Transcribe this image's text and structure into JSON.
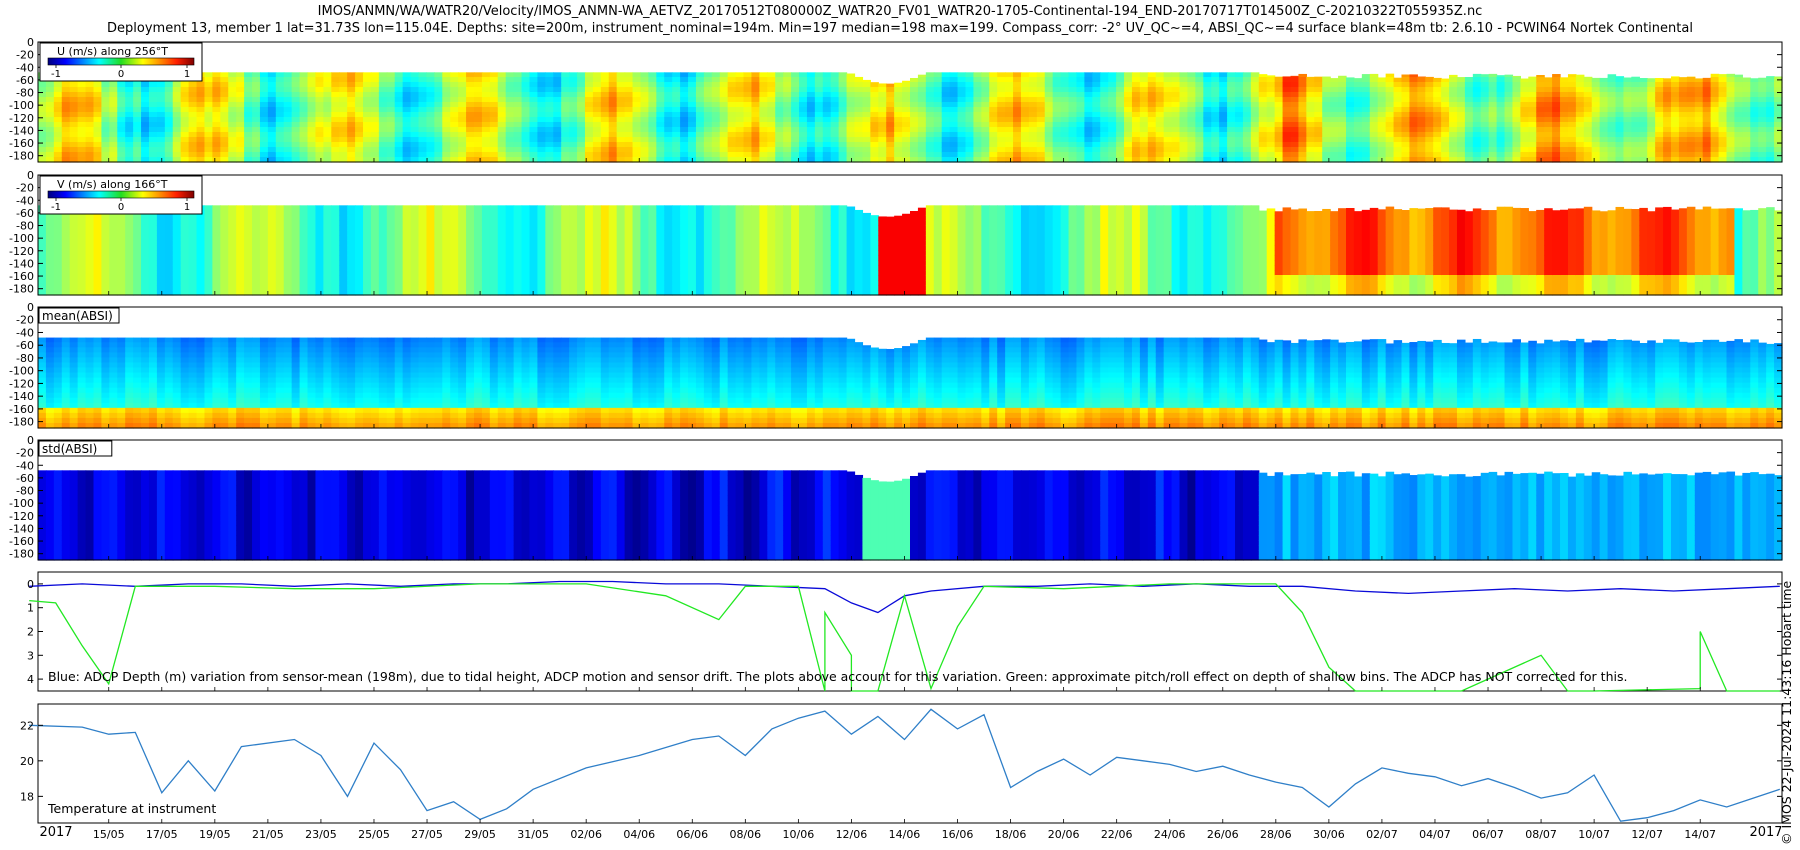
{
  "header": {
    "title_line1": "IMOS/ANMN/WA/WATR20/Velocity/IMOS_ANMN-WA_AETVZ_20170512T080000Z_WATR20_FV01_WATR20-1705-Continental-194_END-20170717T014500Z_C-20210322T055935Z.nc",
    "title_line2": "Deployment 13, member 1 lat=31.73S lon=115.04E. Depths: site=200m, instrument_nominal=194m. Min=197 median=198 max=199. Compass_corr: -2° UV_QC~=4, ABSI_QC~=4 surface blank=48m tb: 2.6.10 - PCWIN64 Nortek Continental"
  },
  "stamp": "© IMOS 22-Jul-2024 11:43:16 Hobart time",
  "colors": {
    "u_series": "#0a0ad8",
    "pitch_roll": "#22e822",
    "temperature": "#2f7fc8",
    "axis": "#000000"
  },
  "chart_data": [
    {
      "type": "heatmap",
      "title": "U (m/s) along 256°T",
      "colormap": "jet",
      "colorbar_ticks": [
        "-1",
        "0",
        "1"
      ],
      "clim": [
        -1.2,
        1.2
      ],
      "ylim": [
        190,
        0
      ],
      "yticks": [
        "0",
        "20",
        "40",
        "60",
        "80",
        "100",
        "120",
        "140",
        "160",
        "180"
      ],
      "surface_blank_depth_m": 48
    },
    {
      "type": "heatmap",
      "title": "V (m/s) along 166°T",
      "colormap": "jet",
      "colorbar_ticks": [
        "-1",
        "0",
        "1"
      ],
      "clim": [
        -1.2,
        1.2
      ],
      "ylim": [
        190,
        0
      ],
      "yticks": [
        "0",
        "20",
        "40",
        "60",
        "80",
        "100",
        "120",
        "140",
        "160",
        "180"
      ],
      "surface_blank_depth_m": 48
    },
    {
      "type": "heatmap",
      "title": "mean(ABSI)",
      "colormap": "jet",
      "ylim": [
        190,
        0
      ],
      "yticks": [
        "0",
        "20",
        "40",
        "60",
        "80",
        "100",
        "120",
        "140",
        "160",
        "180"
      ]
    },
    {
      "type": "heatmap",
      "title": "std(ABSI)",
      "colormap": "jet",
      "ylim": [
        190,
        0
      ],
      "yticks": [
        "0",
        "20",
        "40",
        "60",
        "80",
        "100",
        "120",
        "140",
        "160",
        "180"
      ]
    },
    {
      "type": "line",
      "annotation": "Blue: ADCP Depth (m) variation from sensor-mean (198m), due to tidal height, ADCP motion and sensor drift. The plots above account for this variation. Green: approximate pitch/roll effect on depth of shallow bins. The ADCP has NOT corrected for this.",
      "ylim": [
        4.5,
        -0.5
      ],
      "yticks": [
        "0",
        "1",
        "2",
        "3",
        "4"
      ],
      "series": [
        {
          "x": [
            "12/05",
            "14/05",
            "16/05",
            "18/05",
            "20/05",
            "22/05",
            "24/05",
            "26/05",
            "28/05",
            "30/05",
            "01/06",
            "03/06",
            "05/06",
            "07/06",
            "09/06",
            "11/06",
            "12/06",
            "13/06",
            "14/06",
            "15/06",
            "17/06",
            "19/06",
            "21/06",
            "23/06",
            "25/06",
            "27/06",
            "29/06",
            "01/07",
            "03/07",
            "05/07",
            "07/07",
            "09/07",
            "11/07",
            "13/07",
            "15/07",
            "17/07"
          ],
          "values": [
            0.1,
            0,
            0.1,
            0,
            0,
            0.1,
            0,
            0.1,
            0,
            0,
            -0.1,
            -0.1,
            0,
            0,
            0.1,
            0.2,
            0.8,
            1.2,
            0.5,
            0.3,
            0.1,
            0.1,
            0,
            0.1,
            0,
            0.1,
            0.1,
            0.3,
            0.4,
            0.3,
            0.2,
            0.3,
            0.2,
            0.3,
            0.2,
            0.1
          ]
        },
        {
          "x": [
            "12/05",
            "13/05",
            "14/05",
            "15/05",
            "16/05",
            "19/05",
            "22/05",
            "25/05",
            "29/05",
            "02/06",
            "05/06",
            "07/06",
            "08/06",
            "10/06",
            "11/06",
            "11/06",
            "12/06",
            "12/06",
            "13/06",
            "14/06",
            "15/06",
            "16/06",
            "17/06",
            "20/06",
            "24/06",
            "28/06",
            "29/06",
            "30/06",
            "01/07",
            "05/07",
            "08/07",
            "09/07",
            "10/07",
            "14/07",
            "14/07",
            "15/07",
            "17/07"
          ],
          "values": [
            0.7,
            0.8,
            2.6,
            4.2,
            0.1,
            0.1,
            0.2,
            0.2,
            0,
            0,
            0.5,
            1.5,
            0.1,
            0.1,
            4.5,
            1.2,
            3.0,
            4.5,
            4.5,
            0.5,
            4.4,
            1.8,
            0.1,
            0.2,
            0,
            0,
            1.2,
            3.5,
            4.5,
            4.5,
            3.0,
            4.5,
            4.5,
            4.4,
            2.0,
            4.5,
            4.5
          ]
        }
      ]
    },
    {
      "type": "line",
      "annotation": "Temperature at instrument",
      "ylim": [
        16.5,
        23.2
      ],
      "yticks": [
        "18",
        "20",
        "22"
      ],
      "x": [
        "12/05",
        "14/05",
        "15/05",
        "16/05",
        "17/05",
        "18/05",
        "19/05",
        "20/05",
        "22/05",
        "23/05",
        "24/05",
        "25/05",
        "26/05",
        "27/05",
        "28/05",
        "29/05",
        "30/05",
        "31/05",
        "02/06",
        "04/06",
        "06/06",
        "07/06",
        "08/06",
        "09/06",
        "10/06",
        "11/06",
        "12/06",
        "13/06",
        "14/06",
        "15/06",
        "16/06",
        "17/06",
        "18/06",
        "19/06",
        "20/06",
        "21/06",
        "22/06",
        "23/06",
        "24/06",
        "25/06",
        "26/06",
        "27/06",
        "28/06",
        "29/06",
        "30/06",
        "01/07",
        "02/07",
        "03/07",
        "04/07",
        "05/07",
        "06/07",
        "07/07",
        "08/07",
        "09/07",
        "10/07",
        "11/07",
        "12/07",
        "13/07",
        "14/07",
        "15/07",
        "16/07",
        "17/07"
      ],
      "values": [
        22.0,
        21.9,
        21.5,
        21.6,
        18.2,
        20.0,
        18.3,
        20.8,
        21.2,
        20.3,
        18.0,
        21.0,
        19.5,
        17.2,
        17.7,
        16.7,
        17.3,
        18.4,
        19.6,
        20.3,
        21.2,
        21.4,
        20.3,
        21.8,
        22.4,
        22.8,
        21.5,
        22.5,
        21.2,
        22.9,
        21.8,
        22.6,
        18.5,
        19.4,
        20.1,
        19.2,
        20.2,
        20.0,
        19.8,
        19.4,
        19.7,
        19.2,
        18.8,
        18.5,
        17.4,
        18.7,
        19.6,
        19.3,
        19.1,
        18.6,
        19.0,
        18.5,
        17.9,
        18.2,
        19.2,
        16.6,
        16.8,
        17.2,
        17.8,
        17.4,
        17.9,
        18.4
      ]
    },
    {
      "type": "axis",
      "xlim": [
        "12/05/2017",
        "17/07/2017"
      ],
      "xticks": [
        "15/05",
        "17/05",
        "19/05",
        "21/05",
        "23/05",
        "25/05",
        "27/05",
        "29/05",
        "31/05",
        "02/06",
        "04/06",
        "06/06",
        "08/06",
        "10/06",
        "12/06",
        "14/06",
        "16/06",
        "18/06",
        "20/06",
        "22/06",
        "24/06",
        "26/06",
        "28/06",
        "30/06",
        "02/07",
        "04/07",
        "06/07",
        "08/07",
        "10/07",
        "12/07",
        "14/07"
      ],
      "year_left": "2017",
      "year_right": "2017"
    }
  ]
}
